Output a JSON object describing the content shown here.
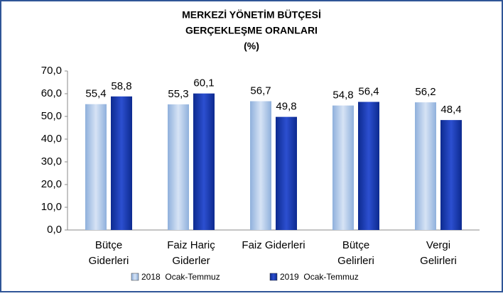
{
  "chart_data": {
    "type": "bar",
    "title": [
      "MERKEZİ YÖNETİM BÜTÇESİ",
      "GERÇEKLEŞME ORANLARI",
      "(%)"
    ],
    "categories": [
      [
        "Bütçe",
        "Giderleri"
      ],
      [
        "Faiz Hariç",
        "Giderler"
      ],
      [
        "Faiz Giderleri"
      ],
      [
        "Bütçe",
        "Gelirleri"
      ],
      [
        "Vergi",
        "Gelirleri"
      ]
    ],
    "series": [
      {
        "name": "2018  Ocak-Temmuz",
        "color": "#a9c4e6",
        "values": [
          55.4,
          55.3,
          56.7,
          54.8,
          56.2
        ],
        "value_labels": [
          "55,4",
          "55,3",
          "56,7",
          "54,8",
          "56,2"
        ]
      },
      {
        "name": "2019  Ocak-Temmuz",
        "color": "#1f3aa8",
        "values": [
          58.8,
          60.1,
          49.8,
          56.4,
          48.4
        ],
        "value_labels": [
          "58,8",
          "60,1",
          "49,8",
          "56,4",
          "48,4"
        ]
      }
    ],
    "ylim": [
      0,
      70
    ],
    "yticks": [
      {
        "value": 0,
        "label": "0,0"
      },
      {
        "value": 10,
        "label": "10,0"
      },
      {
        "value": 20,
        "label": "20,0"
      },
      {
        "value": 30,
        "label": "30,0"
      },
      {
        "value": 40,
        "label": "40,0"
      },
      {
        "value": 50,
        "label": "50,0"
      },
      {
        "value": 60,
        "label": "60,0"
      },
      {
        "value": 70,
        "label": "70,0"
      }
    ],
    "legend": "bottom"
  }
}
